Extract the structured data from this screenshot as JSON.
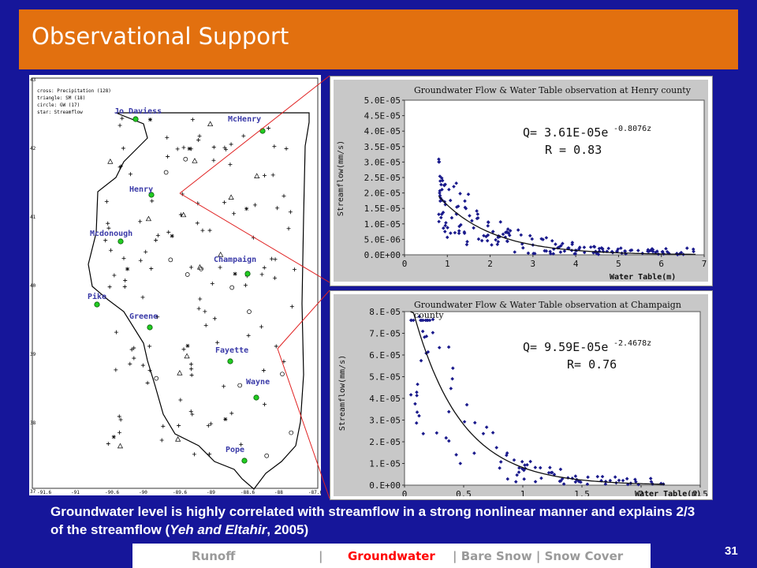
{
  "slide": {
    "title": "Observational Support",
    "caption_main": "Groundwater level is highly correlated with streamflow in a strong nonlinear manner and explains 2/3 of the streamflow (",
    "caption_cite": "Yeh and Eltahir",
    "caption_end": ", 2005)",
    "page_number": "31"
  },
  "nav": {
    "runoff": "Runoff",
    "sep1": "|",
    "groundwater": "Groundwater",
    "rest": "| Bare Snow | Snow Cover"
  },
  "colors": {
    "background": "#16169a",
    "title_bar": "#e2700f",
    "active_nav": "#ff0000",
    "station": "#22cc22",
    "points": "#1a1a8c"
  },
  "map": {
    "legend": [
      "cross: Precipitation (128)",
      "triangle: SM (18)",
      "circle: GW (17)",
      "star: Streamflow"
    ],
    "y_ticks": [
      "43",
      "42",
      "41",
      "40",
      "39",
      "38",
      "37"
    ],
    "x_ticks": [
      "-91.6",
      "-91",
      "-90.6",
      "-90",
      "-89.6",
      "-89",
      "-88.6",
      "-88",
      "-87.6"
    ],
    "stations": [
      "Jo Daviess",
      "McHenry",
      "Henry",
      "Mcdonough",
      "Champaign",
      "Pike",
      "Greene",
      "Fayette",
      "Wayne",
      "Pope"
    ]
  },
  "chart_data": [
    {
      "type": "scatter",
      "title": "Groundwater Flow & Water Table observation at Henry county",
      "xlabel": "Water Table(m)",
      "ylabel": "Streamflow(mm/s)",
      "equation": "Q= 3.61E-05e",
      "exponent": "-0.8076z",
      "r_text": "R = 0.83",
      "xlim": [
        0,
        7
      ],
      "ylim": [
        0,
        5e-05
      ],
      "x_ticks": [
        "0",
        "1",
        "2",
        "3",
        "4",
        "5",
        "6",
        "7"
      ],
      "y_ticks": [
        "5.0E-05",
        "4.5E-05",
        "4.0E-05",
        "3.5E-05",
        "3.0E-05",
        "2.5E-05",
        "2.0E-05",
        "1.5E-05",
        "1.0E-05",
        "5.0E-06",
        "0.0E+00"
      ],
      "fit": {
        "a": 3.61e-05,
        "b": -0.8076,
        "x_from": 0.8,
        "x_to": 6.8
      }
    },
    {
      "type": "scatter",
      "title": "Groundwater Flow & Water Table observation at Champaign county",
      "xlabel": "Water Table(m)",
      "ylabel": "Streamflow(mm/s)",
      "equation": "Q= 9.59E-05e",
      "exponent": "-2.4678z",
      "r_text": "R= 0.76",
      "xlim": [
        0,
        2.5
      ],
      "ylim": [
        0,
        8e-05
      ],
      "x_ticks": [
        "0",
        "0.5",
        "1",
        "1.5",
        "2",
        "2.5"
      ],
      "y_ticks": [
        "8.E-05",
        "7.E-05",
        "6.E-05",
        "5.E-05",
        "4.E-05",
        "3.E-05",
        "2.E-05",
        "1.E-05",
        "0.E+00"
      ],
      "fit": {
        "a": 9.59e-05,
        "b": -2.4678,
        "x_from": 0.05,
        "x_to": 2.2
      }
    }
  ]
}
